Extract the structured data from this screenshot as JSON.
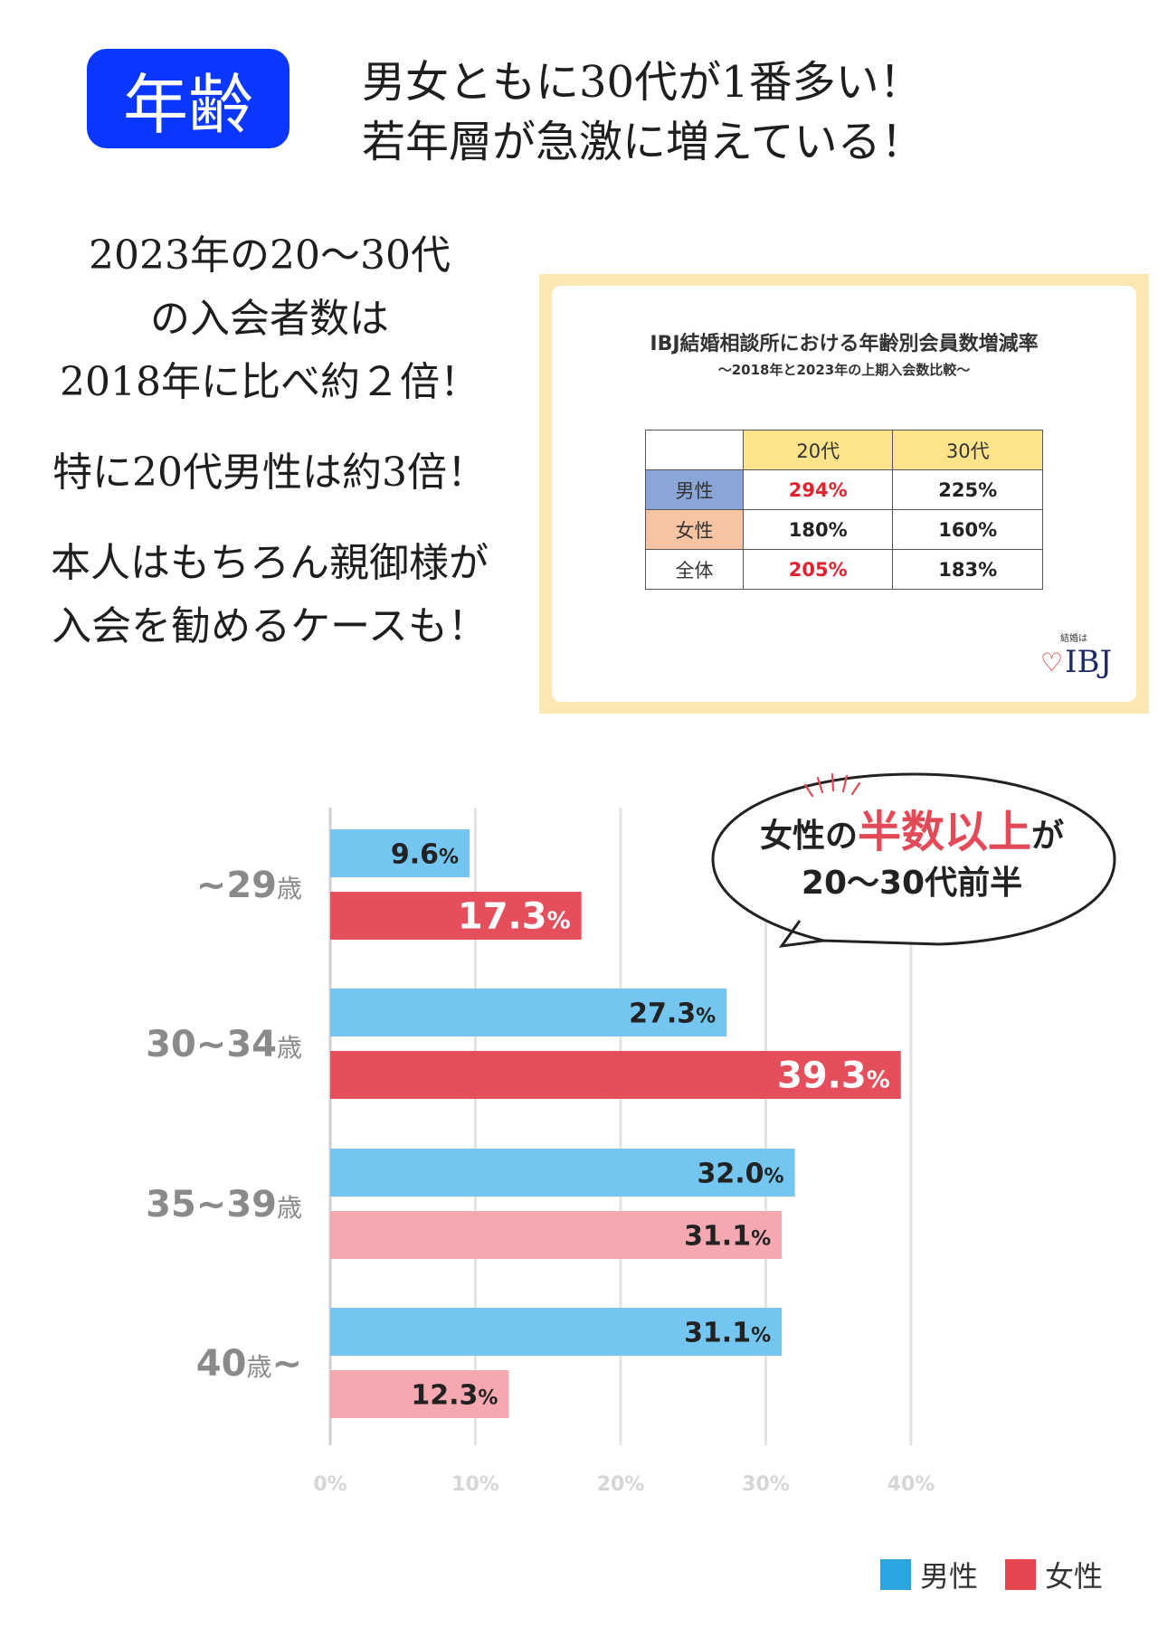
{
  "header": {
    "badge": "年齢",
    "headline_lines": [
      "男女ともに30代が1番多い！",
      "若年層が急激に増えている！"
    ]
  },
  "left_copy": {
    "block1": [
      "2023年の20～30代",
      "の入会者数は",
      "2018年に比べ約２倍！"
    ],
    "block2": [
      "特に20代男性は約3倍！"
    ],
    "block3": [
      "本人はもちろん親御様が",
      "入会を勧めるケースも！"
    ]
  },
  "card": {
    "title": "IBJ結婚相談所における年齢別会員数増減率",
    "subtitle": "～2018年と2023年の上期入会数比較～",
    "col_headers": [
      "20代",
      "30代"
    ],
    "rows": [
      {
        "label": "男性",
        "v20": "294%",
        "v30": "225%"
      },
      {
        "label": "女性",
        "v20": "180%",
        "v30": "160%"
      },
      {
        "label": "全体",
        "v20": "205%",
        "v30": "183%"
      }
    ],
    "logo_small": "結婚は",
    "logo": "IBJ"
  },
  "bubble": {
    "line1_pre": "女性の",
    "line1_emph": "半数以上",
    "line1_post": "が",
    "line2": "20～30代前半"
  },
  "chart_data": {
    "type": "bar",
    "orientation": "horizontal",
    "categories": [
      "~29歳",
      "30~34歳",
      "35~39歳",
      "40歳~"
    ],
    "series": [
      {
        "name": "男性",
        "values": [
          9.6,
          27.3,
          32.0,
          31.1
        ],
        "labels": [
          "9.6%",
          "27.3%",
          "32.0%",
          "31.1%"
        ]
      },
      {
        "name": "女性",
        "values": [
          17.3,
          39.3,
          31.1,
          12.3
        ],
        "labels": [
          "17.3%",
          "39.3%",
          "31.1%",
          "12.3%"
        ]
      }
    ],
    "x_ticks": [
      "0%",
      "10%",
      "20%",
      "30%",
      "40%"
    ],
    "xlim": [
      0,
      40
    ],
    "grid": true,
    "legend_position": "bottom-right",
    "colors": {
      "male": "#74c6f0",
      "female_strong": "#e54e5b",
      "female_light": "#f6a8b1",
      "legend_male": "#2ba4e0",
      "legend_female": "#e5454f"
    }
  }
}
